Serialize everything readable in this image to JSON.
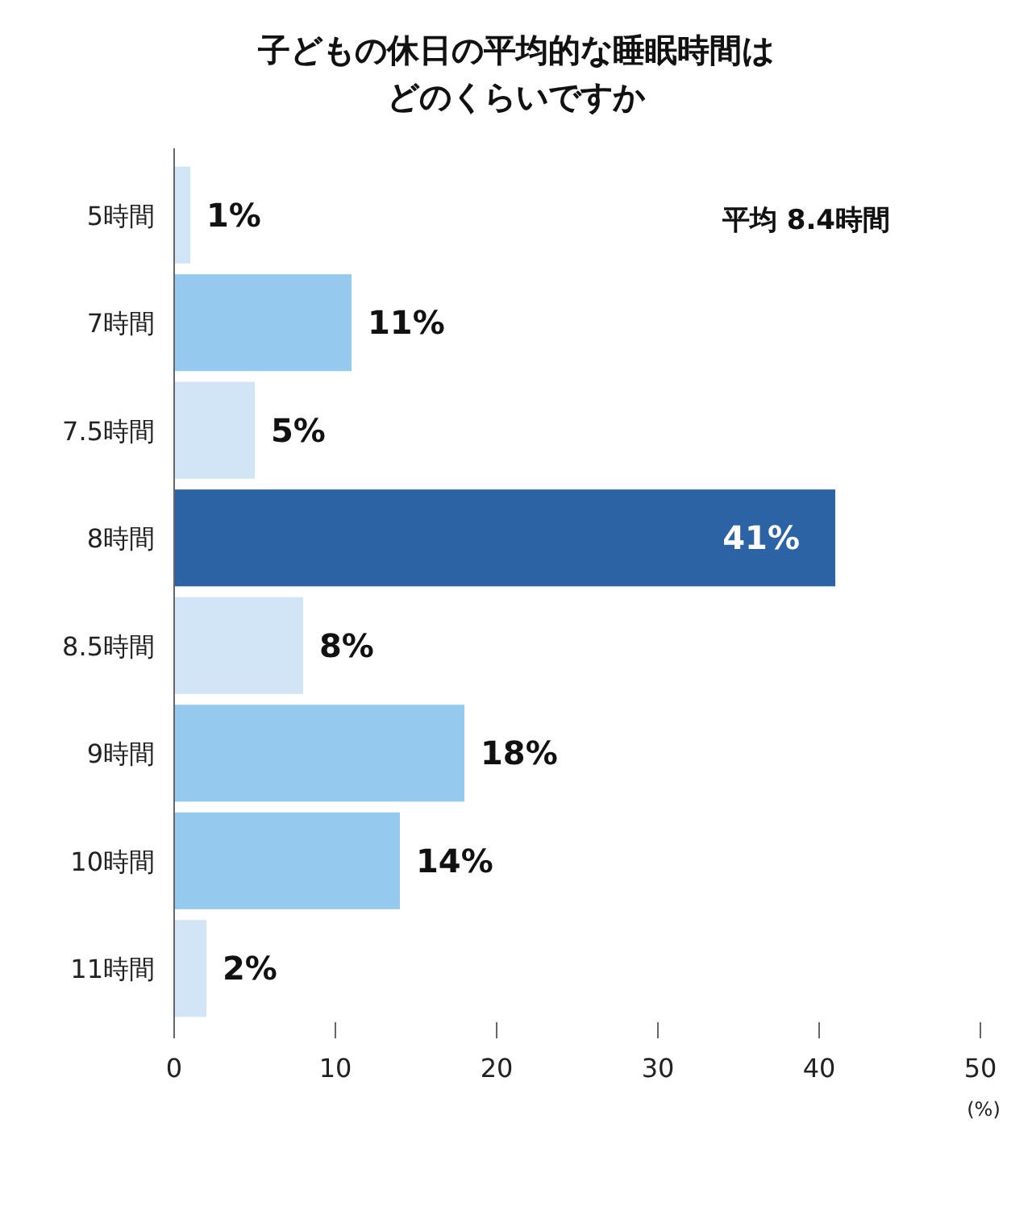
{
  "chart_data": {
    "type": "bar",
    "orientation": "horizontal",
    "title": "子どもの休日の平均的な睡眠時間はどのくらいですか",
    "categories": [
      "5時間",
      "7時間",
      "7.5時間",
      "8時間",
      "8.5時間",
      "9時間",
      "10時間",
      "11時間"
    ],
    "values": [
      1,
      11,
      5,
      41,
      8,
      18,
      14,
      2
    ],
    "colors": [
      "#d2e5f7",
      "#95caee",
      "#d2e5f7",
      "#2c63a5",
      "#d2e5f7",
      "#95caee",
      "#95caee",
      "#d2e5f7"
    ],
    "value_labels": [
      "1%",
      "11%",
      "5%",
      "41%",
      "8%",
      "18%",
      "14%",
      "2%"
    ],
    "xlim": [
      0,
      50
    ],
    "xticks": [
      0,
      10,
      20,
      30,
      40,
      50
    ],
    "xlabel": "(%)",
    "annotations": [
      "平均 8.4時間"
    ],
    "grid": false
  }
}
